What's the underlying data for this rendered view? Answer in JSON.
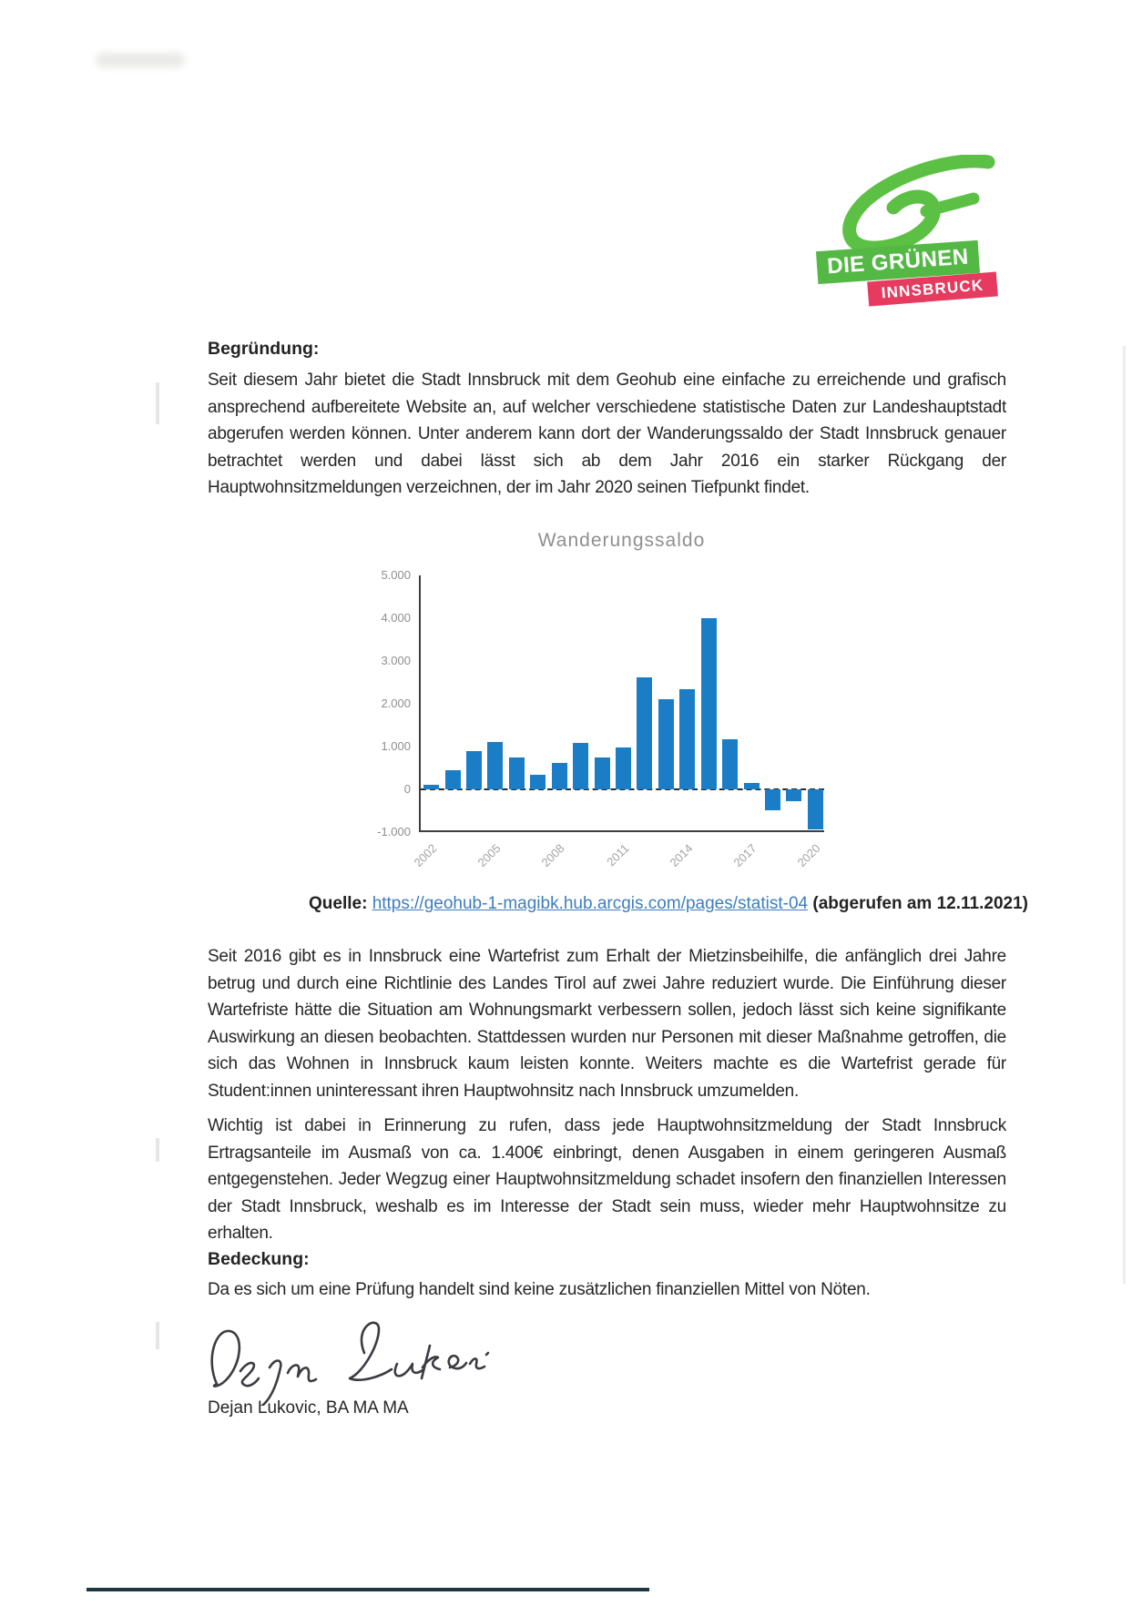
{
  "logo": {
    "line1": "DIE GRÜNEN",
    "line2": "INNSBRUCK",
    "green": "#54b845",
    "red": "#e63a5f"
  },
  "document": {
    "heading_begruendung": "Begründung:",
    "paragraph1": "Seit diesem Jahr bietet die Stadt Innsbruck mit dem Geohub eine einfache zu erreichende und grafisch ansprechend aufbereitete Website an, auf welcher verschiedene statistische Daten zur Landeshauptstadt abgerufen werden können. Unter anderem kann dort der Wanderungssaldo der Stadt Innsbruck genauer betrachtet werden und dabei lässt sich ab dem Jahr 2016 ein starker Rückgang der Hauptwohnsitzmeldungen verzeichnen, der im Jahr 2020 seinen Tiefpunkt findet.",
    "source": {
      "prefix": "Quelle:",
      "url": "https://geohub-1-magibk.hub.arcgis.com/pages/statist-04",
      "suffix": "(abgerufen am 12.11.2021)"
    },
    "paragraph2": "Seit 2016 gibt es in Innsbruck eine Wartefrist zum Erhalt der Mietzinsbeihilfe, die anfänglich drei Jahre betrug und durch eine Richtlinie des Landes Tirol auf zwei Jahre reduziert wurde. Die Einführung dieser Wartefriste hätte die Situation am Wohnungsmarkt verbessern sollen, jedoch lässt sich keine signifikante Auswirkung an diesen beobachten. Stattdessen wurden nur Personen mit dieser Maßnahme getroffen, die sich das Wohnen in Innsbruck kaum leisten konnte. Weiters machte es die Wartefrist gerade für Student:innen uninteressant ihren Hauptwohnsitz nach Innsbruck umzumelden.",
    "paragraph3": "Wichtig ist dabei in Erinnerung zu rufen, dass jede Hauptwohnsitzmeldung der Stadt Innsbruck Ertragsanteile im Ausmaß von ca. 1.400€ einbringt, denen Ausgaben in einem geringeren Ausmaß entgegenstehen.  Jeder Wegzug einer Hauptwohnsitzmeldung schadet insofern den finanziellen Interessen der Stadt Innsbruck, weshalb es im Interesse der Stadt sein muss, wieder mehr Hauptwohnsitze zu erhalten.",
    "heading_bedeckung": "Bedeckung:",
    "paragraph4": "Da es sich um eine Prüfung handelt sind keine zusätzlichen finanziellen Mittel von Nöten.",
    "signature_caption": "Dejan Lukovic, BA MA MA"
  },
  "chart_data": {
    "type": "bar",
    "title": "Wanderungssaldo",
    "x": [
      2002,
      2003,
      2004,
      2005,
      2006,
      2007,
      2008,
      2009,
      2010,
      2011,
      2012,
      2013,
      2014,
      2015,
      2016,
      2017,
      2018,
      2019,
      2020
    ],
    "values": [
      100,
      450,
      900,
      1100,
      750,
      330,
      620,
      1080,
      750,
      980,
      2620,
      2100,
      2350,
      4000,
      1180,
      150,
      -480,
      -270,
      -930
    ],
    "x_tick_labels": [
      "2002",
      "2005",
      "2008",
      "2011",
      "2014",
      "2017",
      "2020"
    ],
    "y_ticks": [
      "5.000",
      "4.000",
      "3.000",
      "2.000",
      "1.000",
      "0",
      "-1.000"
    ],
    "ylim": [
      -1000,
      5000
    ],
    "xlabel": "",
    "ylabel": "",
    "grid": false,
    "legend": false,
    "zero_line": "dashed",
    "bar_color": "#1a7dc6"
  }
}
